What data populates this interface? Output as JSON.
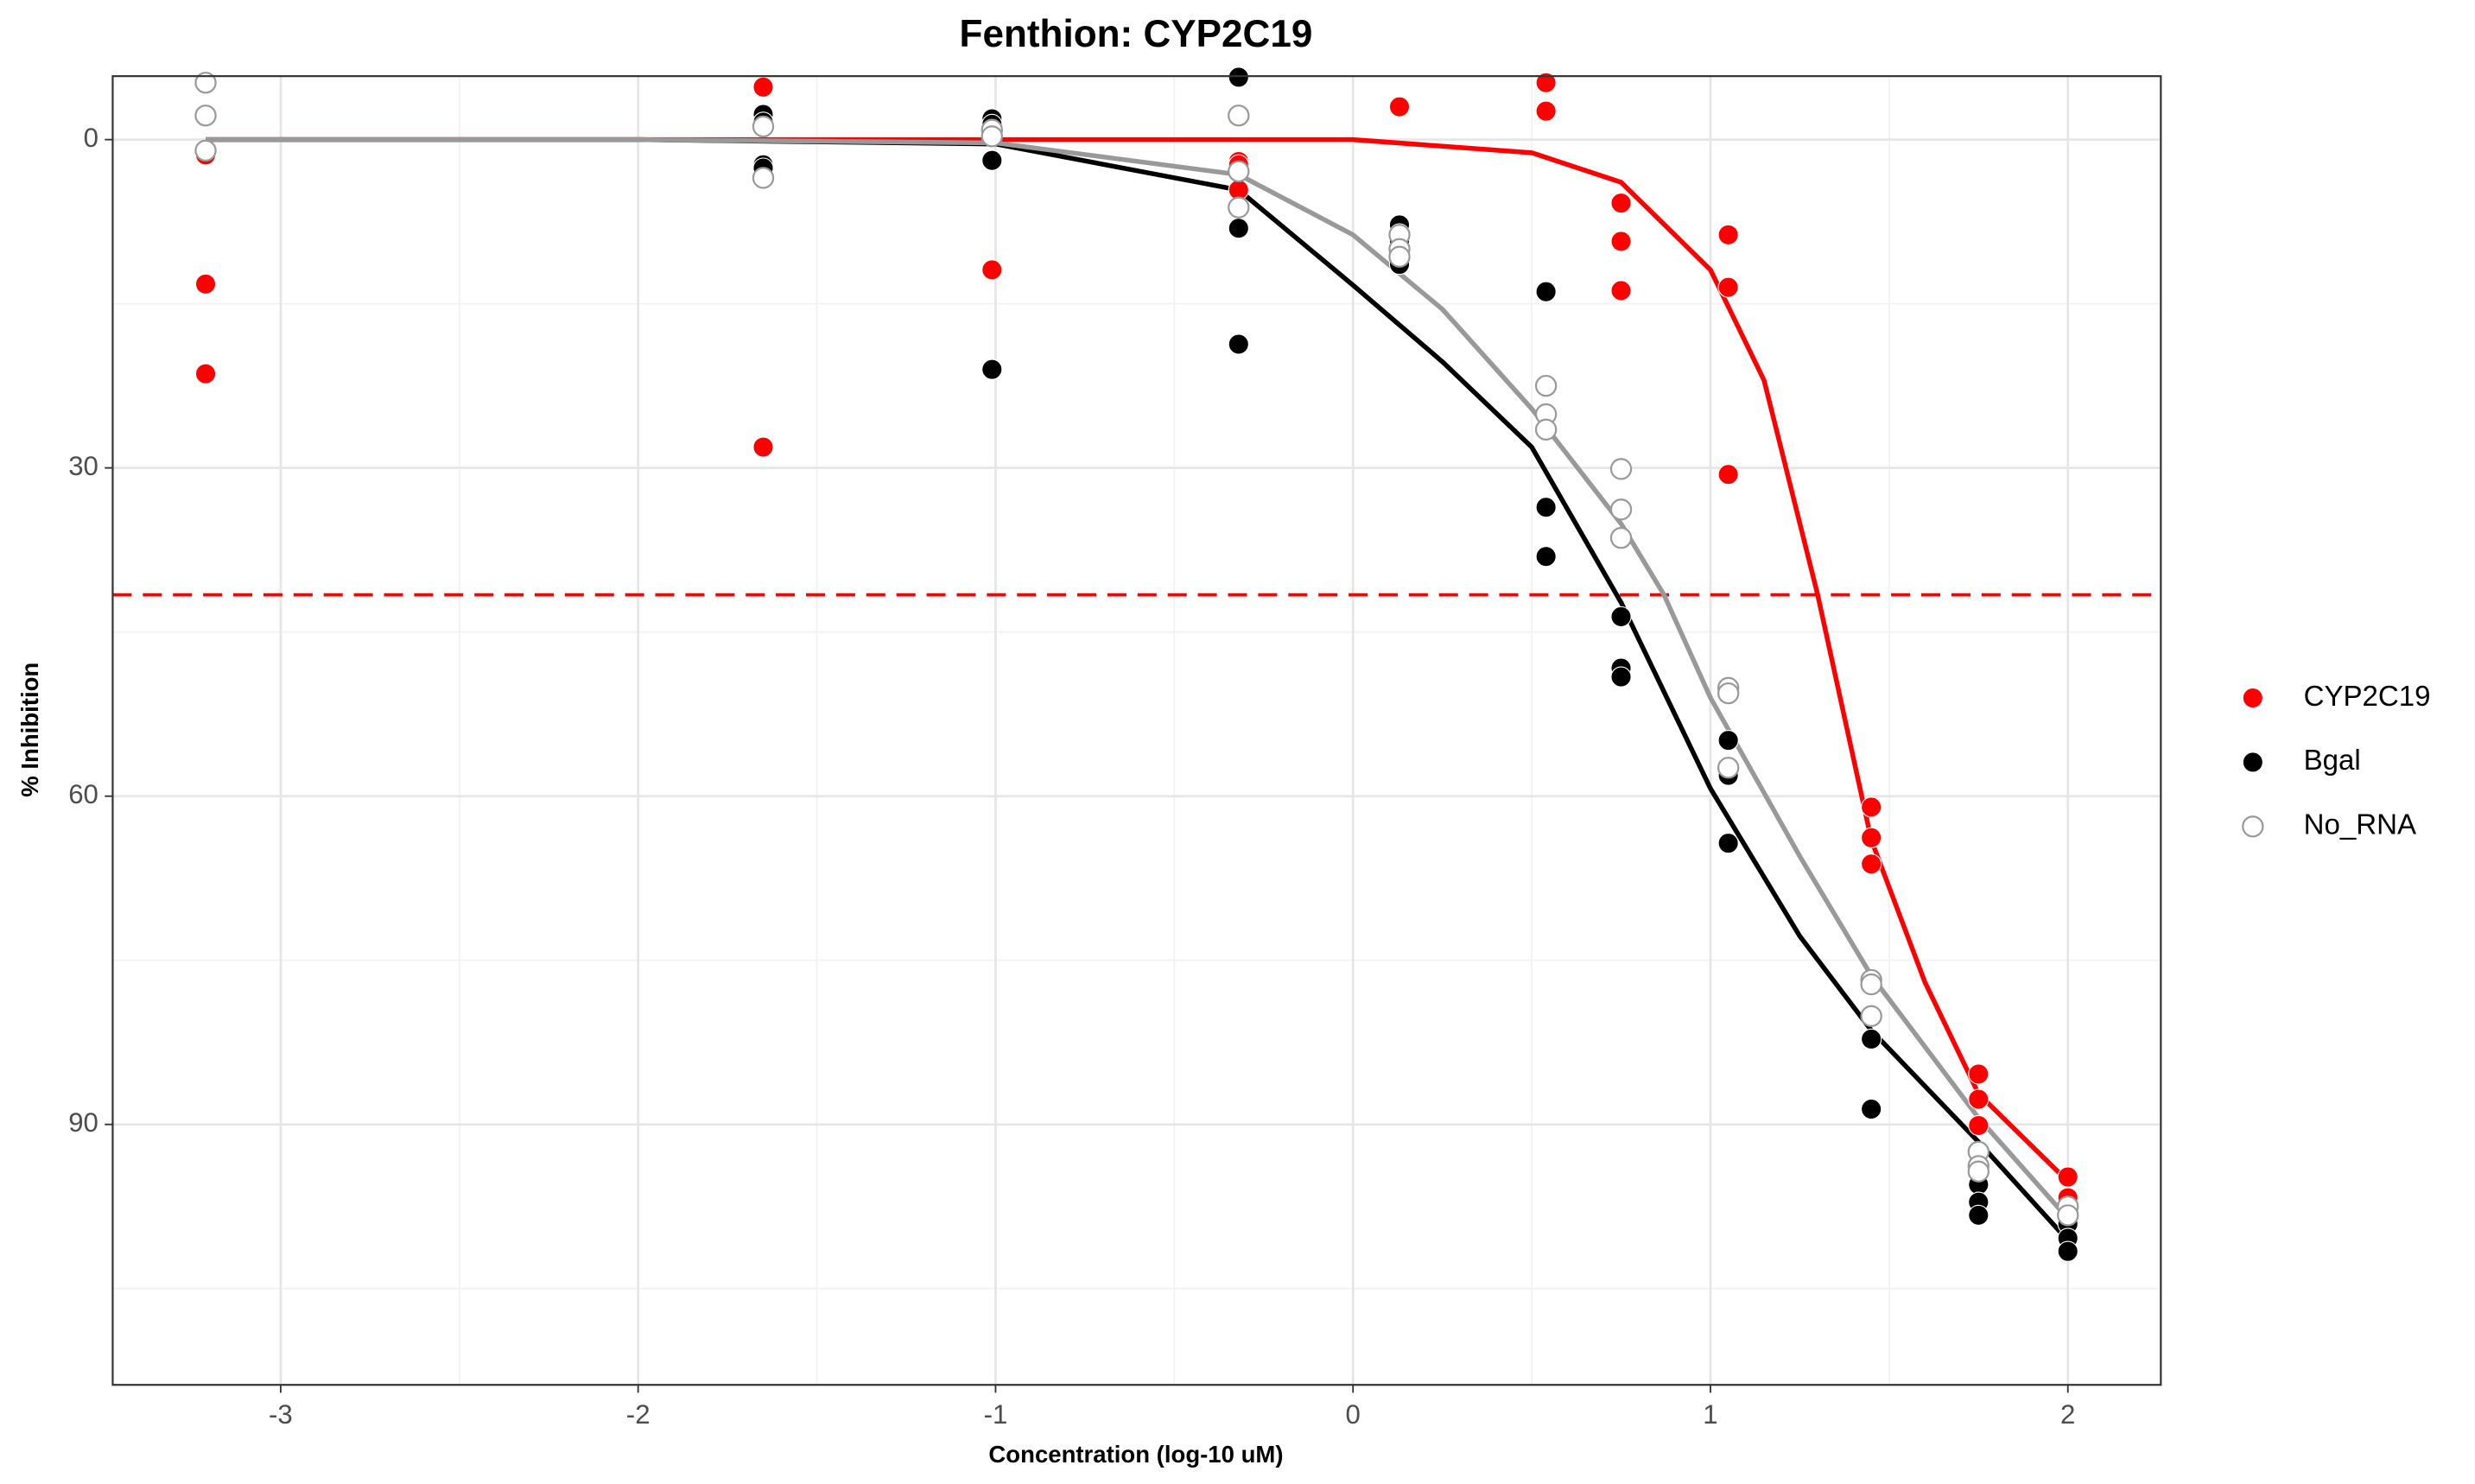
{
  "chart_data": {
    "type": "scatter",
    "title": "Fenthion: CYP2C19",
    "x_label": "Concentration (log-10 uM)",
    "y_label": "% Inhibition",
    "xlim": [
      -3.47,
      2.26
    ],
    "xticks": [
      -3,
      -2,
      -1,
      0,
      1,
      2
    ],
    "ylim": [
      113.8,
      -5.8
    ],
    "yticks": [
      0,
      30,
      60,
      90
    ],
    "grid": true,
    "minor_grid": true,
    "legend": "right",
    "hline": {
      "value": 41.6,
      "color": "#ff0000"
    },
    "series": [
      {
        "name": "CYP2C19",
        "color": "#ff0000",
        "marker": "filled",
        "x": [
          -3.21,
          -3.21,
          -3.21,
          -3.21,
          -1.65,
          -1.65,
          -1.65,
          -1.01,
          -0.32,
          -0.32,
          -0.32,
          0.13,
          0.54,
          0.54,
          0.75,
          0.75,
          0.75,
          1.05,
          1.05,
          1.05,
          1.45,
          1.45,
          1.45,
          1.75,
          1.75,
          1.75,
          2.0,
          2.0
        ],
        "values": [
          1.2,
          1.4,
          13.2,
          21.4,
          -4.8,
          -1.3,
          28.1,
          11.9,
          2.0,
          2.3,
          4.6,
          -3.0,
          -5.2,
          -2.6,
          5.8,
          9.3,
          13.8,
          8.7,
          13.5,
          30.6,
          61.0,
          63.8,
          66.2,
          85.4,
          87.7,
          90.1,
          94.8,
          96.7
        ],
        "fit": {
          "x": [
            -3.21,
            -2,
            -1,
            0,
            0.5,
            0.75,
            1.0,
            1.15,
            1.3,
            1.45,
            1.6,
            1.75,
            2.0
          ],
          "values": [
            0,
            0,
            0,
            0,
            1.2,
            3.9,
            11.9,
            22,
            41.6,
            64,
            77,
            87.2,
            95.2
          ]
        }
      },
      {
        "name": "Bgal",
        "color": "#000000",
        "marker": "filled",
        "x": [
          -1.65,
          -1.65,
          -1.65,
          -1.65,
          -1.01,
          -1.01,
          -1.01,
          -1.01,
          -0.32,
          -0.32,
          -0.32,
          0.13,
          0.13,
          0.13,
          0.13,
          0.54,
          0.54,
          0.54,
          0.75,
          0.75,
          0.75,
          1.05,
          1.05,
          1.05,
          1.05,
          1.45,
          1.45,
          1.75,
          1.75,
          1.75,
          2.0,
          2.0,
          2.0
        ],
        "values": [
          -2.3,
          -1.6,
          2.3,
          2.6,
          -1.9,
          -1.4,
          1.9,
          21.0,
          -5.7,
          8.1,
          18.7,
          7.8,
          8.6,
          9.3,
          11.4,
          13.9,
          33.6,
          38.1,
          43.6,
          48.3,
          49.1,
          54.9,
          57.7,
          58.1,
          64.3,
          82.2,
          88.6,
          95.5,
          97.1,
          98.3,
          99.1,
          100.4,
          101.6
        ],
        "fit": {
          "x": [
            -3.21,
            -2,
            -1,
            -0.32,
            0,
            0.25,
            0.5,
            0.75,
            1.0,
            1.25,
            1.45,
            1.75,
            2.0
          ],
          "values": [
            0,
            0,
            0.4,
            4.6,
            13.3,
            20.3,
            28.1,
            42.3,
            59.3,
            72.8,
            81.4,
            91.6,
            100.6
          ]
        }
      },
      {
        "name": "No_RNA",
        "color": "#999999",
        "marker": "open",
        "x": [
          -3.21,
          -3.21,
          -3.21,
          -1.65,
          -1.65,
          -1.01,
          -1.01,
          -0.32,
          -0.32,
          -0.32,
          0.13,
          0.13,
          0.13,
          0.54,
          0.54,
          0.54,
          0.75,
          0.75,
          0.75,
          1.05,
          1.05,
          1.05,
          1.45,
          1.45,
          1.45,
          1.75,
          1.75,
          1.75,
          2.0,
          2.0
        ],
        "values": [
          -5.2,
          -2.2,
          1.0,
          -1.2,
          3.5,
          -0.9,
          -0.3,
          -2.2,
          2.9,
          6.2,
          8.7,
          10.0,
          10.7,
          22.5,
          25.1,
          26.5,
          30.1,
          33.8,
          36.4,
          50.1,
          50.6,
          57.4,
          76.8,
          77.2,
          80.1,
          92.5,
          93.8,
          94.3,
          97.5,
          98.3
        ],
        "fit": {
          "x": [
            -3.21,
            -2,
            -1,
            -0.32,
            0,
            0.25,
            0.5,
            0.75,
            0.87,
            1.0,
            1.25,
            1.45,
            1.75,
            2.0
          ],
          "values": [
            0,
            0,
            0.3,
            3.2,
            8.7,
            15.5,
            24.6,
            35.1,
            41.6,
            51.0,
            65.5,
            76.4,
            89.4,
            98.6
          ]
        }
      }
    ]
  }
}
